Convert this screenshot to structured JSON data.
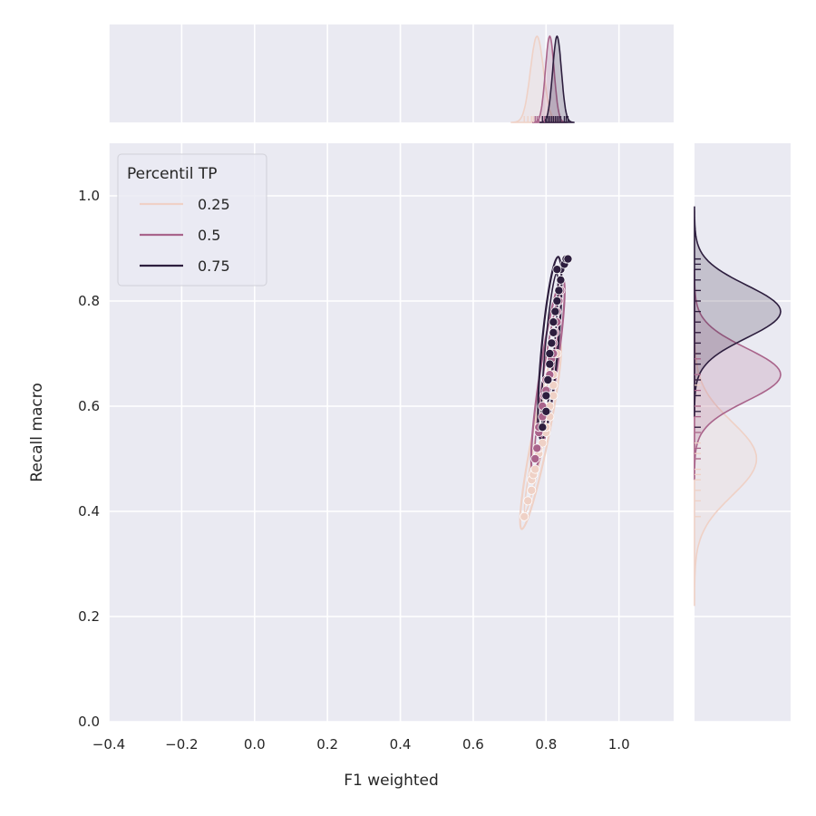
{
  "chart_data": {
    "type": "scatter",
    "subtype": "jointplot-kde",
    "xlabel": "F1 weighted",
    "ylabel": "Recall macro",
    "xlim": [
      -0.4,
      1.15
    ],
    "ylim": [
      0.0,
      1.1
    ],
    "xticks": [
      "−0.4",
      "−0.2",
      "0.0",
      "0.2",
      "0.4",
      "0.6",
      "0.8",
      "1.0"
    ],
    "xtick_values": [
      -0.4,
      -0.2,
      0.0,
      0.2,
      0.4,
      0.6,
      0.8,
      1.0
    ],
    "yticks": [
      "0.0",
      "0.2",
      "0.4",
      "0.6",
      "0.8",
      "1.0"
    ],
    "ytick_values": [
      0.0,
      0.2,
      0.4,
      0.6,
      0.8,
      1.0
    ],
    "grid": true,
    "legend": {
      "title": "Percentil TP",
      "placement": "top-left",
      "entries": [
        "0.25",
        "0.5",
        "0.75"
      ]
    },
    "colors": {
      "background": "#eaeaf2",
      "grid": "#ffffff",
      "0.25": "#efd1c6",
      "0.5": "#a9648b",
      "0.75": "#2d1e3e"
    },
    "series": [
      {
        "name": "0.25",
        "points": [
          [
            0.74,
            0.39
          ],
          [
            0.75,
            0.42
          ],
          [
            0.76,
            0.44
          ],
          [
            0.76,
            0.46
          ],
          [
            0.765,
            0.47
          ],
          [
            0.77,
            0.48
          ],
          [
            0.77,
            0.5
          ],
          [
            0.78,
            0.51
          ],
          [
            0.78,
            0.52
          ],
          [
            0.79,
            0.53
          ],
          [
            0.8,
            0.55
          ],
          [
            0.8,
            0.56
          ],
          [
            0.81,
            0.58
          ],
          [
            0.81,
            0.6
          ],
          [
            0.82,
            0.62
          ],
          [
            0.82,
            0.64
          ],
          [
            0.82,
            0.66
          ],
          [
            0.83,
            0.7
          ]
        ],
        "x_kde_center": 0.775,
        "x_kde_sd": 0.018,
        "y_kde_center": 0.5,
        "y_kde_sd": 0.07
      },
      {
        "name": "0.5",
        "points": [
          [
            0.77,
            0.5
          ],
          [
            0.775,
            0.52
          ],
          [
            0.78,
            0.55
          ],
          [
            0.78,
            0.56
          ],
          [
            0.79,
            0.58
          ],
          [
            0.79,
            0.6
          ],
          [
            0.795,
            0.62
          ],
          [
            0.8,
            0.63
          ],
          [
            0.8,
            0.65
          ],
          [
            0.81,
            0.66
          ],
          [
            0.81,
            0.68
          ],
          [
            0.815,
            0.69
          ],
          [
            0.82,
            0.7
          ],
          [
            0.82,
            0.72
          ],
          [
            0.825,
            0.74
          ],
          [
            0.83,
            0.76
          ],
          [
            0.83,
            0.78
          ],
          [
            0.835,
            0.8
          ],
          [
            0.84,
            0.82
          ]
        ],
        "x_kde_center": 0.81,
        "x_kde_sd": 0.012,
        "y_kde_center": 0.66,
        "y_kde_sd": 0.05
      },
      {
        "name": "0.75",
        "points": [
          [
            0.79,
            0.56
          ],
          [
            0.8,
            0.59
          ],
          [
            0.8,
            0.62
          ],
          [
            0.805,
            0.65
          ],
          [
            0.81,
            0.68
          ],
          [
            0.81,
            0.7
          ],
          [
            0.815,
            0.72
          ],
          [
            0.82,
            0.74
          ],
          [
            0.82,
            0.76
          ],
          [
            0.825,
            0.78
          ],
          [
            0.83,
            0.8
          ],
          [
            0.835,
            0.82
          ],
          [
            0.84,
            0.84
          ],
          [
            0.84,
            0.86
          ],
          [
            0.85,
            0.87
          ],
          [
            0.855,
            0.88
          ],
          [
            0.86,
            0.88
          ],
          [
            0.83,
            0.86
          ]
        ],
        "x_kde_center": 0.83,
        "x_kde_sd": 0.012,
        "y_kde_center": 0.78,
        "y_kde_sd": 0.05
      }
    ]
  }
}
